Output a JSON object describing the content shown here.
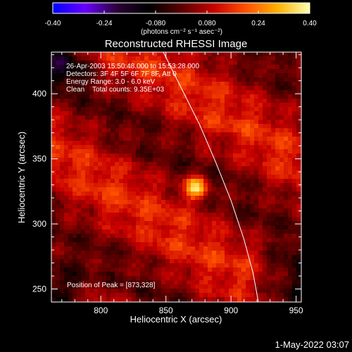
{
  "title": "Reconstructed RHESSI Image",
  "colorbar": {
    "ticks": [
      "-0.40",
      "-0.24",
      "-0.080",
      "0.080",
      "0.24",
      "0.40"
    ],
    "unit_line": "(photons cm⁻² s⁻¹ asec⁻²)",
    "range": [
      -0.4,
      0.4
    ]
  },
  "info": {
    "time_range": "26-Apr-2003 15:50:48.000 to 15:53:28.000",
    "detectors": "Detectors: 3F 4F 5F 6F 7F 8F, Att 0",
    "energy": "Energy Range: 3.0 - 6.0 keV",
    "clean": "Clean    Total counts: 9.35E+03"
  },
  "peak_text": "Position of Peak = [873,328]",
  "x_axis": {
    "label": "Heliocentric X (arcsec)",
    "ticks": [
      "800",
      "850",
      "900",
      "950"
    ]
  },
  "y_axis": {
    "label": "Heliocentric Y (arcsec)",
    "ticks": [
      "250",
      "300",
      "350",
      "400"
    ]
  },
  "date_stamp": "1-May-2022 03:07",
  "chart_data": {
    "type": "heatmap",
    "title": "Reconstructed RHESSI Image",
    "xlabel": "Heliocentric X (arcsec)",
    "ylabel": "Heliocentric Y (arcsec)",
    "xlim": [
      762,
      954
    ],
    "ylim": [
      240,
      432
    ],
    "value_range": [
      -0.4,
      0.4
    ],
    "peak": [
      873,
      328
    ],
    "limb_curve": [
      [
        848,
        432
      ],
      [
        862,
        404
      ],
      [
        876,
        376
      ],
      [
        888,
        348
      ],
      [
        900,
        318
      ],
      [
        910,
        288
      ],
      [
        917,
        262
      ],
      [
        921,
        240
      ]
    ],
    "colormap": [
      "#0000ff",
      "#6a00ff",
      "#2b0038",
      "#000000",
      "#5a0000",
      "#c80000",
      "#ff5000",
      "#ffb000",
      "#ffffb0"
    ]
  }
}
